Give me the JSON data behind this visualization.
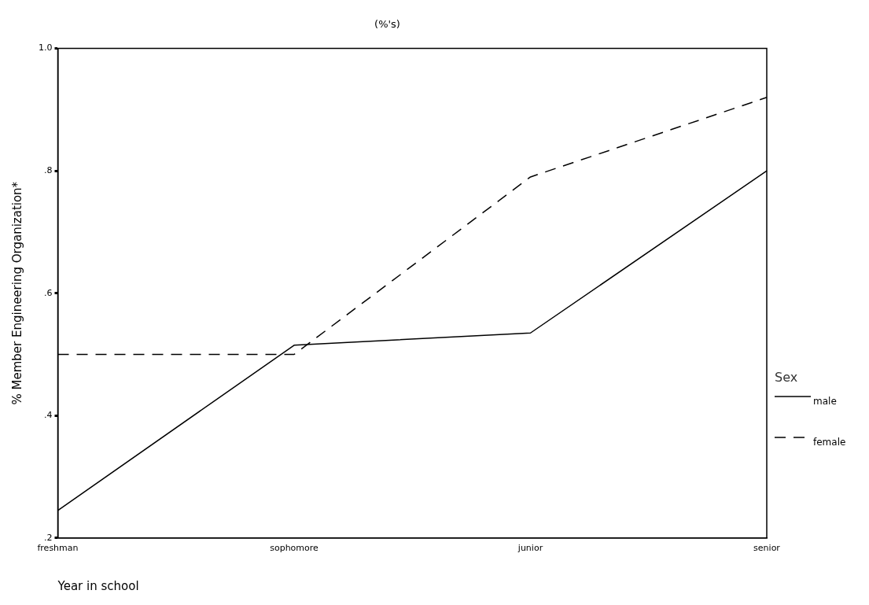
{
  "chart_data": {
    "type": "line",
    "title": "(%'s)",
    "xlabel": "Year in school",
    "ylabel": "% Member Engineering Organization*",
    "legend_title": "Sex",
    "legend": "bottom right",
    "grid": false,
    "marker": "none",
    "categories": [
      "freshman",
      "sophomore",
      "junior",
      "senior"
    ],
    "ylim": [
      0.2,
      1.0
    ],
    "yticks": [
      {
        "value": 0.2,
        "label": ".2"
      },
      {
        "value": 0.4,
        "label": ".4"
      },
      {
        "value": 0.6,
        "label": ".6"
      },
      {
        "value": 0.8,
        "label": ".8"
      },
      {
        "value": 1.0,
        "label": "1.0"
      }
    ],
    "series": [
      {
        "name": "male",
        "color": "#000000",
        "line_style": "solid",
        "values": [
          0.245,
          0.515,
          0.535,
          0.8
        ]
      },
      {
        "name": "female",
        "color": "#000000",
        "line_style": "dashed",
        "values": [
          0.5,
          0.5,
          0.79,
          0.92
        ]
      }
    ]
  }
}
